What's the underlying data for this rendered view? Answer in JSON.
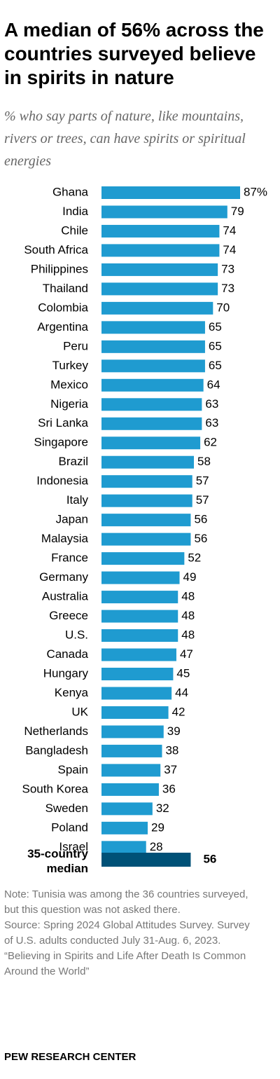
{
  "chart_data": {
    "type": "bar",
    "orientation": "horizontal",
    "title": "A median of 56% across the countries surveyed believe in spirits in nature",
    "subtitle": "% who say parts of nature, like mountains, rivers or trees, can have spirits or spiritual energies",
    "categories": [
      "Ghana",
      "India",
      "Chile",
      "South Africa",
      "Philippines",
      "Thailand",
      "Colombia",
      "Argentina",
      "Peru",
      "Turkey",
      "Mexico",
      "Nigeria",
      "Sri Lanka",
      "Singapore",
      "Brazil",
      "Indonesia",
      "Italy",
      "Japan",
      "Malaysia",
      "France",
      "Germany",
      "Australia",
      "Greece",
      "U.S.",
      "Canada",
      "Hungary",
      "Kenya",
      "UK",
      "Netherlands",
      "Bangladesh",
      "Spain",
      "South Korea",
      "Sweden",
      "Poland",
      "Israel"
    ],
    "values": [
      87,
      79,
      74,
      74,
      73,
      73,
      70,
      65,
      65,
      65,
      64,
      63,
      63,
      62,
      58,
      57,
      57,
      56,
      56,
      52,
      49,
      48,
      48,
      48,
      47,
      45,
      44,
      42,
      39,
      38,
      37,
      36,
      32,
      29,
      28
    ],
    "value_labels": [
      "87%",
      "79",
      "74",
      "74",
      "73",
      "73",
      "70",
      "65",
      "65",
      "65",
      "64",
      "63",
      "63",
      "62",
      "58",
      "57",
      "57",
      "56",
      "56",
      "52",
      "49",
      "48",
      "48",
      "48",
      "47",
      "45",
      "44",
      "42",
      "39",
      "38",
      "37",
      "36",
      "32",
      "29",
      "28"
    ],
    "color": "#1f9bd0",
    "median": {
      "label": "35-country median",
      "value": 56,
      "color": "#005177"
    },
    "notes": [
      "Note: Tunisia was among the 36 countries surveyed, but this question was not asked there.",
      "Source: Spring 2024 Global Attitudes Survey. Survey of U.S. adults conducted July 31-Aug. 6, 2023.",
      "“Believing in Spirits and Life After Death Is Common Around the World”"
    ],
    "source": "PEW RESEARCH CENTER"
  }
}
